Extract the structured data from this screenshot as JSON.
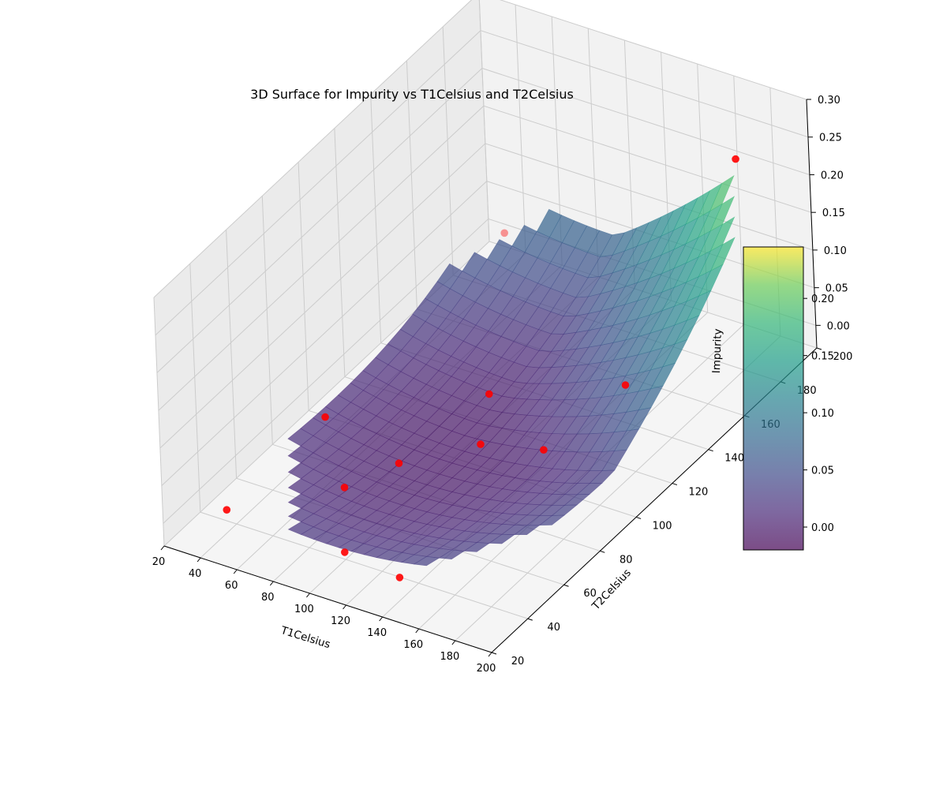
{
  "chart_data": {
    "type": "surface3d",
    "title": "3D Surface for Impurity vs T1Celsius and T2Celsius",
    "xlabel": "T1Celsius",
    "ylabel": "T2Celsius",
    "zlabel": "Impurity",
    "xlim": [
      20,
      200
    ],
    "ylim": [
      20,
      200
    ],
    "zlim": [
      -0.03,
      0.3
    ],
    "xticks": [
      "20",
      "40",
      "60",
      "80",
      "100",
      "120",
      "140",
      "160",
      "180",
      "200"
    ],
    "yticks": [
      "20",
      "40",
      "60",
      "80",
      "100",
      "120",
      "140",
      "160",
      "180",
      "200"
    ],
    "zticks": [
      "0.00",
      "0.05",
      "0.10",
      "0.15",
      "0.20",
      "0.25",
      "0.30"
    ],
    "colormap": "viridis",
    "surface_alpha": 0.7,
    "colorbar": {
      "min": -0.02,
      "max": 0.245,
      "ticks": [
        "0.00",
        "0.05",
        "0.10",
        "0.15",
        "0.20"
      ]
    },
    "grid": true,
    "scatter_color": "#ff0000",
    "scatter_points": [
      {
        "x": 40,
        "y": 35,
        "z": 0.0
      },
      {
        "x": 50,
        "y": 80,
        "z": 0.03
      },
      {
        "x": 80,
        "y": 60,
        "z": 0.005
      },
      {
        "x": 90,
        "y": 80,
        "z": 0.0
      },
      {
        "x": 110,
        "y": 30,
        "z": 0.01
      },
      {
        "x": 60,
        "y": 170,
        "z": 0.08
      },
      {
        "x": 100,
        "y": 120,
        "z": 0.01
      },
      {
        "x": 115,
        "y": 100,
        "z": 0.0
      },
      {
        "x": 140,
        "y": 30,
        "z": 0.0
      },
      {
        "x": 150,
        "y": 100,
        "z": 0.02
      },
      {
        "x": 150,
        "y": 145,
        "z": 0.005
      },
      {
        "x": 180,
        "y": 180,
        "z": 0.25
      }
    ]
  }
}
